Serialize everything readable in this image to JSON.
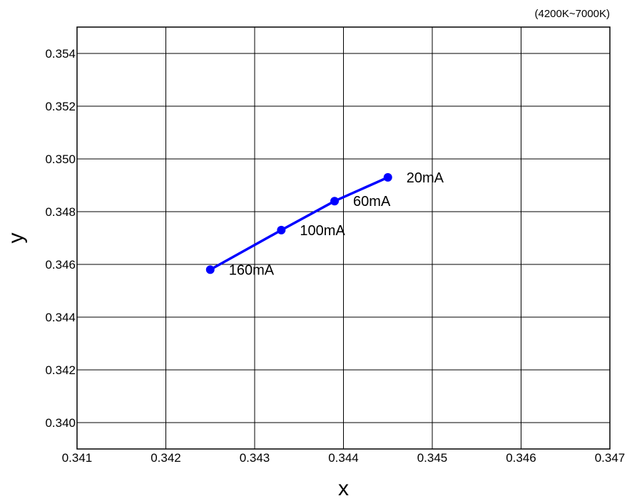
{
  "chart_data": {
    "type": "line",
    "title": "",
    "annotation": "(4200K~7000K)",
    "xlabel": "x",
    "ylabel": "y",
    "xlim": [
      0.341,
      0.347
    ],
    "ylim": [
      0.339,
      0.355
    ],
    "x_ticks": [
      "0.341",
      "0.342",
      "0.343",
      "0.344",
      "0.345",
      "0.346",
      "0.347"
    ],
    "y_ticks": [
      "0.340",
      "0.342",
      "0.344",
      "0.346",
      "0.348",
      "0.350",
      "0.352",
      "0.354"
    ],
    "grid": true,
    "series": [
      {
        "color": "#0000ff",
        "points": [
          {
            "x": 0.3445,
            "y": 0.3493,
            "label": "20mA"
          },
          {
            "x": 0.3439,
            "y": 0.3484,
            "label": "60mA"
          },
          {
            "x": 0.3433,
            "y": 0.3473,
            "label": "100mA"
          },
          {
            "x": 0.3425,
            "y": 0.3458,
            "label": "160mA"
          }
        ]
      }
    ]
  }
}
